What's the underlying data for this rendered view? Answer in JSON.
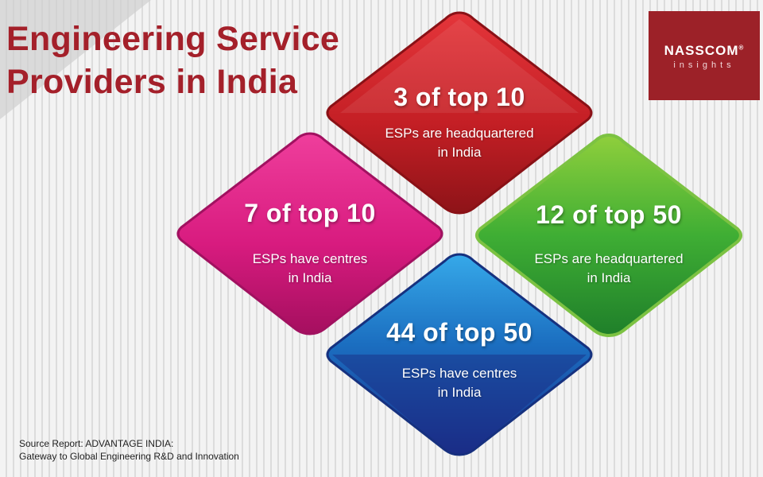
{
  "title": {
    "line1": "Engineering Service",
    "line2": "Providers in India"
  },
  "logo": {
    "brand": "NASSCOM",
    "registered": "®",
    "sub": "insights"
  },
  "stats": [
    {
      "id": "red",
      "value": "3 of top 10",
      "desc_line1": "ESPs are headquartered",
      "desc_line2": "in India",
      "color": "#c62127"
    },
    {
      "id": "pink",
      "value": "7 of top 10",
      "desc_line1": "ESPs have centres",
      "desc_line2": "in India",
      "color": "#d81b7f"
    },
    {
      "id": "green",
      "value": "12 of top 50",
      "desc_line1": "ESPs are headquartered",
      "desc_line2": "in India",
      "color": "#3aa535"
    },
    {
      "id": "blue",
      "value": "44 of top 50",
      "desc_line1": "ESPs have centres",
      "desc_line2": "in India",
      "color": "#1e6fb8"
    }
  ],
  "source": {
    "line1": "Source Report: ADVANTAGE INDIA:",
    "line2": "Gateway to Global Engineering R&D and Innovation"
  }
}
